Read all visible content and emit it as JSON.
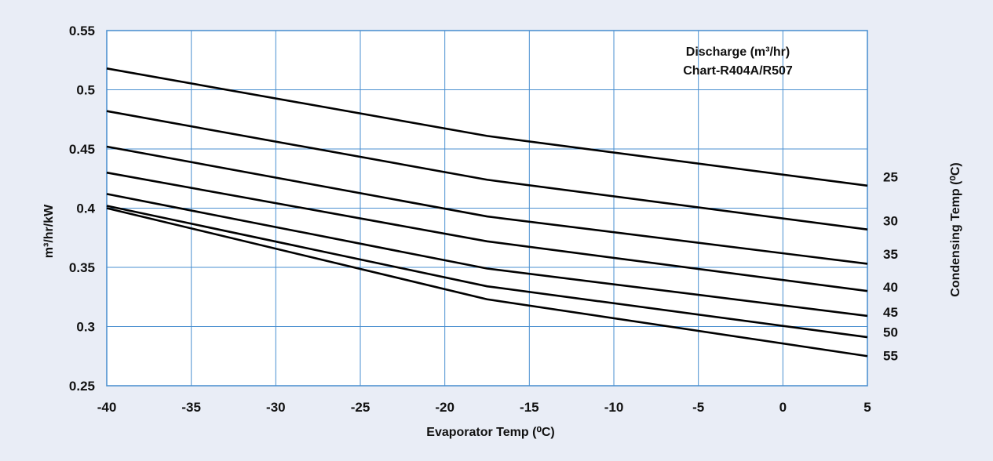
{
  "chart_data": {
    "type": "line",
    "title_lines": [
      "Discharge (m³/hr)",
      "Chart-R404A/R507"
    ],
    "xlabel": "Evaporator Temp (⁰C)",
    "ylabel": "m³/hr/kW",
    "right_label": "Condensing Temp (⁰C)",
    "xlim": [
      -40,
      5
    ],
    "ylim": [
      0.25,
      0.55
    ],
    "x_ticks": [
      -40,
      -35,
      -30,
      -25,
      -20,
      -15,
      -10,
      -5,
      0,
      5
    ],
    "x_tick_labels": [
      "-40",
      "-35",
      "-30",
      "-25",
      "-20",
      "-15",
      "-10",
      "-5",
      "0",
      "5"
    ],
    "y_ticks": [
      0.25,
      0.3,
      0.35,
      0.4,
      0.45,
      0.5,
      0.55
    ],
    "y_tick_labels": [
      "0.25",
      "0.3",
      "0.35",
      "0.4",
      "0.45",
      "0.5",
      "0.55"
    ],
    "grid": true,
    "x": [
      -40,
      -17.5,
      5
    ],
    "series": [
      {
        "name": "25",
        "values": [
          0.518,
          0.461,
          0.419
        ]
      },
      {
        "name": "30",
        "values": [
          0.482,
          0.424,
          0.382
        ]
      },
      {
        "name": "35",
        "values": [
          0.452,
          0.393,
          0.353
        ]
      },
      {
        "name": "40",
        "values": [
          0.43,
          0.372,
          0.33
        ]
      },
      {
        "name": "45",
        "values": [
          0.412,
          0.349,
          0.309
        ]
      },
      {
        "name": "50",
        "values": [
          0.402,
          0.334,
          0.291
        ]
      },
      {
        "name": "55",
        "values": [
          0.4,
          0.323,
          0.275
        ]
      }
    ],
    "series_label_values": [
      0.427,
      0.39,
      0.362,
      0.334,
      0.313,
      0.296,
      0.276
    ]
  }
}
